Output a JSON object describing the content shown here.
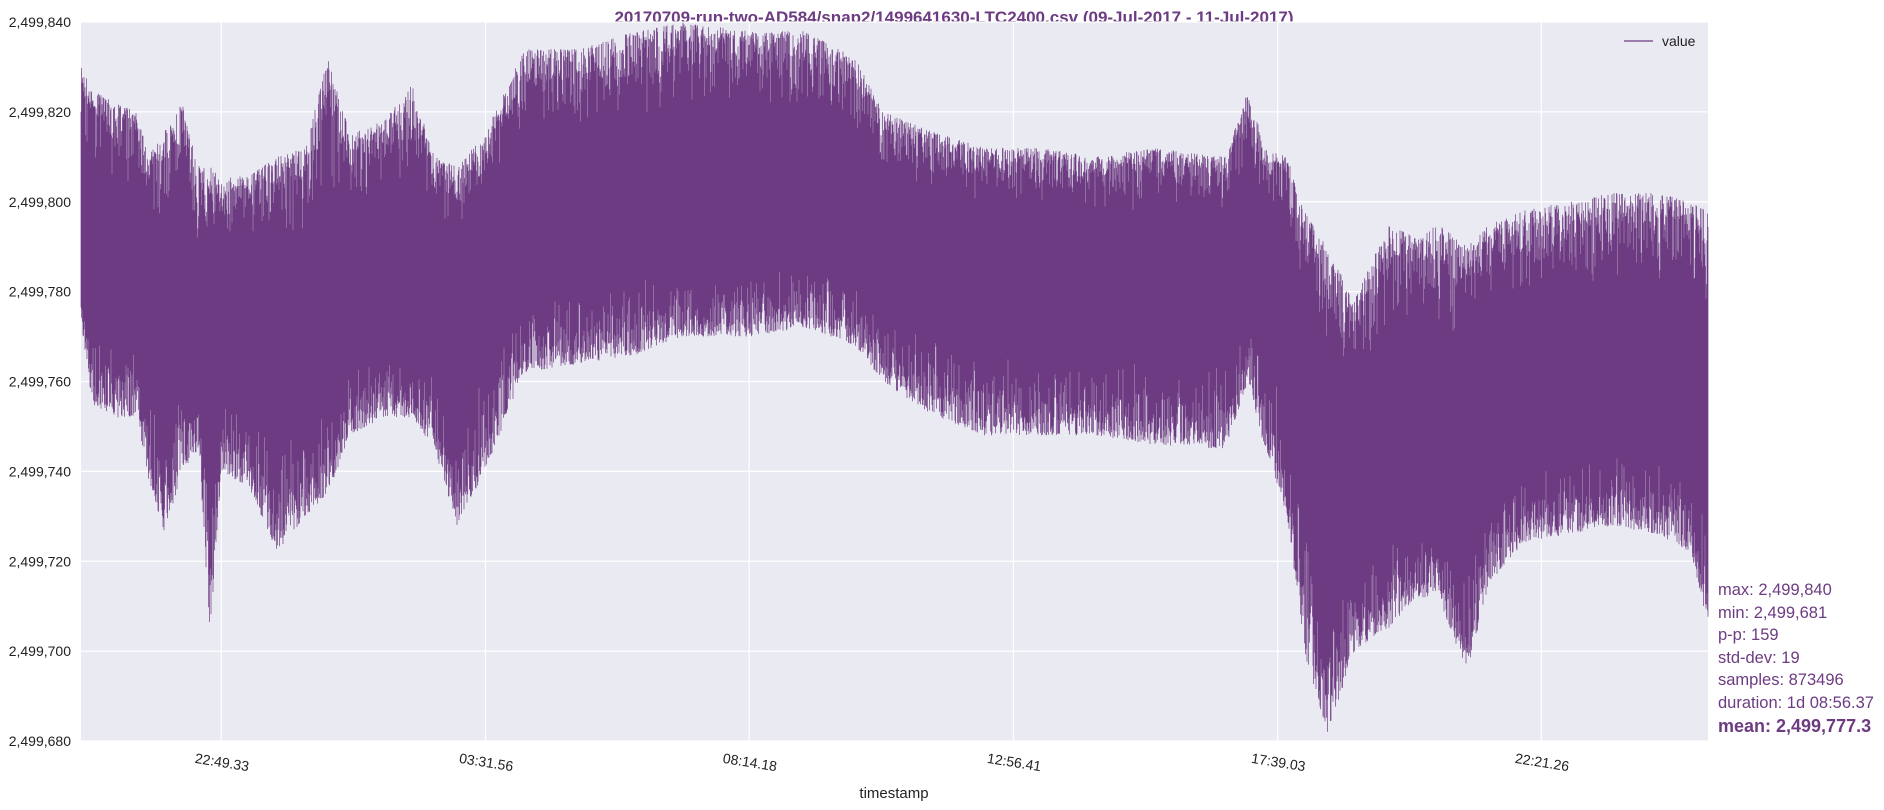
{
  "colors": {
    "series": "#6d3b82",
    "plot_bg": "#eaeaf2",
    "grid": "#ffffff",
    "text": "#222222"
  },
  "chart_data": {
    "type": "line",
    "title": "20170709-run-two-AD584/snap2/1499641630-LTC2400.csv (09-Jul-2017 - 11-Jul-2017)",
    "xlabel": "timestamp",
    "ylabel": "",
    "ylim": [
      2499680,
      2499840
    ],
    "yticks": [
      2499680,
      2499700,
      2499720,
      2499740,
      2499760,
      2499780,
      2499800,
      2499820,
      2499840
    ],
    "ytick_labels": [
      "2,499,680",
      "2,499,700",
      "2,499,720",
      "2,499,740",
      "2,499,760",
      "2,499,780",
      "2,499,800",
      "2,499,820",
      "2,499,840"
    ],
    "xlim_hours": [
      -2.5,
      26.5
    ],
    "xticks_hours": [
      0,
      4.71,
      9.41,
      14.12,
      18.83,
      23.53
    ],
    "xtick_labels": [
      "22:49.33",
      "03:31.56",
      "08:14.18",
      "12:56.41",
      "17:39.03",
      "22:21.26"
    ],
    "grid": true,
    "legend": {
      "position": "top-right",
      "entries": [
        "value"
      ]
    },
    "series": [
      {
        "name": "value",
        "envelope": [
          {
            "x": -2.5,
            "mid": 2499790,
            "min": 2499773,
            "max": 2499830
          },
          {
            "x": -2.3,
            "mid": 2499788,
            "min": 2499755,
            "max": 2499825
          },
          {
            "x": -1.9,
            "mid": 2499785,
            "min": 2499752,
            "max": 2499822
          },
          {
            "x": -1.5,
            "mid": 2499784,
            "min": 2499752,
            "max": 2499820
          },
          {
            "x": -1.3,
            "mid": 2499780,
            "min": 2499738,
            "max": 2499810
          },
          {
            "x": -1.0,
            "mid": 2499777,
            "min": 2499726,
            "max": 2499816
          },
          {
            "x": -0.7,
            "mid": 2499778,
            "min": 2499740,
            "max": 2499822
          },
          {
            "x": -0.4,
            "mid": 2499772,
            "min": 2499745,
            "max": 2499808
          },
          {
            "x": -0.2,
            "mid": 2499770,
            "min": 2499703,
            "max": 2499808
          },
          {
            "x": 0.0,
            "mid": 2499772,
            "min": 2499740,
            "max": 2499805
          },
          {
            "x": 0.5,
            "mid": 2499774,
            "min": 2499736,
            "max": 2499806
          },
          {
            "x": 1.0,
            "mid": 2499772,
            "min": 2499722,
            "max": 2499810
          },
          {
            "x": 1.5,
            "mid": 2499770,
            "min": 2499730,
            "max": 2499812
          },
          {
            "x": 1.9,
            "mid": 2499772,
            "min": 2499735,
            "max": 2499832
          },
          {
            "x": 2.3,
            "mid": 2499780,
            "min": 2499748,
            "max": 2499815
          },
          {
            "x": 2.9,
            "mid": 2499782,
            "min": 2499752,
            "max": 2499818
          },
          {
            "x": 3.4,
            "mid": 2499783,
            "min": 2499752,
            "max": 2499826
          },
          {
            "x": 3.8,
            "mid": 2499780,
            "min": 2499745,
            "max": 2499810
          },
          {
            "x": 4.2,
            "mid": 2499778,
            "min": 2499728,
            "max": 2499808
          },
          {
            "x": 4.7,
            "mid": 2499785,
            "min": 2499740,
            "max": 2499815
          },
          {
            "x": 5.4,
            "mid": 2499796,
            "min": 2499762,
            "max": 2499834
          },
          {
            "x": 6.4,
            "mid": 2499798,
            "min": 2499764,
            "max": 2499834
          },
          {
            "x": 7.4,
            "mid": 2499800,
            "min": 2499766,
            "max": 2499838
          },
          {
            "x": 8.2,
            "mid": 2499800,
            "min": 2499770,
            "max": 2499840
          },
          {
            "x": 9.4,
            "mid": 2499802,
            "min": 2499770,
            "max": 2499838
          },
          {
            "x": 10.4,
            "mid": 2499803,
            "min": 2499772,
            "max": 2499838
          },
          {
            "x": 11.3,
            "mid": 2499800,
            "min": 2499768,
            "max": 2499832
          },
          {
            "x": 11.8,
            "mid": 2499792,
            "min": 2499760,
            "max": 2499820
          },
          {
            "x": 12.6,
            "mid": 2499787,
            "min": 2499753,
            "max": 2499816
          },
          {
            "x": 13.6,
            "mid": 2499786,
            "min": 2499748,
            "max": 2499812
          },
          {
            "x": 14.6,
            "mid": 2499785,
            "min": 2499748,
            "max": 2499812
          },
          {
            "x": 15.6,
            "mid": 2499784,
            "min": 2499748,
            "max": 2499810
          },
          {
            "x": 16.6,
            "mid": 2499784,
            "min": 2499746,
            "max": 2499812
          },
          {
            "x": 17.9,
            "mid": 2499784,
            "min": 2499745,
            "max": 2499810
          },
          {
            "x": 18.3,
            "mid": 2499792,
            "min": 2499760,
            "max": 2499825
          },
          {
            "x": 18.6,
            "mid": 2499784,
            "min": 2499745,
            "max": 2499812
          },
          {
            "x": 19.0,
            "mid": 2499782,
            "min": 2499730,
            "max": 2499810
          },
          {
            "x": 19.3,
            "mid": 2499760,
            "min": 2499700,
            "max": 2499798
          },
          {
            "x": 19.7,
            "mid": 2499748,
            "min": 2499681,
            "max": 2499790
          },
          {
            "x": 20.2,
            "mid": 2499742,
            "min": 2499700,
            "max": 2499778
          },
          {
            "x": 20.8,
            "mid": 2499744,
            "min": 2499705,
            "max": 2499795
          },
          {
            "x": 21.3,
            "mid": 2499748,
            "min": 2499712,
            "max": 2499792
          },
          {
            "x": 21.7,
            "mid": 2499745,
            "min": 2499712,
            "max": 2499795
          },
          {
            "x": 22.2,
            "mid": 2499746,
            "min": 2499695,
            "max": 2499790
          },
          {
            "x": 22.6,
            "mid": 2499752,
            "min": 2499715,
            "max": 2499795
          },
          {
            "x": 23.2,
            "mid": 2499758,
            "min": 2499724,
            "max": 2499798
          },
          {
            "x": 24.0,
            "mid": 2499760,
            "min": 2499726,
            "max": 2499800
          },
          {
            "x": 24.8,
            "mid": 2499762,
            "min": 2499728,
            "max": 2499802
          },
          {
            "x": 25.6,
            "mid": 2499762,
            "min": 2499726,
            "max": 2499802
          },
          {
            "x": 26.2,
            "mid": 2499760,
            "min": 2499722,
            "max": 2499800
          },
          {
            "x": 26.5,
            "mid": 2499752,
            "min": 2499705,
            "max": 2499798
          }
        ]
      }
    ]
  },
  "stats": {
    "max": "max: 2,499,840",
    "min": "min: 2,499,681",
    "pp": "p-p: 159",
    "std": "std-dev: 19",
    "samples": "samples: 873496",
    "duration": "duration: 1d 08:56.37",
    "mean": "mean: 2,499,777.3"
  }
}
